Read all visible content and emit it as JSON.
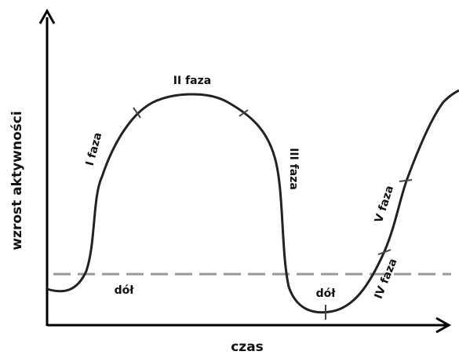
{
  "axes": {
    "y_label": "wzrost aktywności",
    "x_label": "czas"
  },
  "phases": [
    "I faza",
    "II faza",
    "III faza",
    "IV faza",
    "V faza"
  ],
  "troughs": [
    "dół",
    "dół"
  ]
}
